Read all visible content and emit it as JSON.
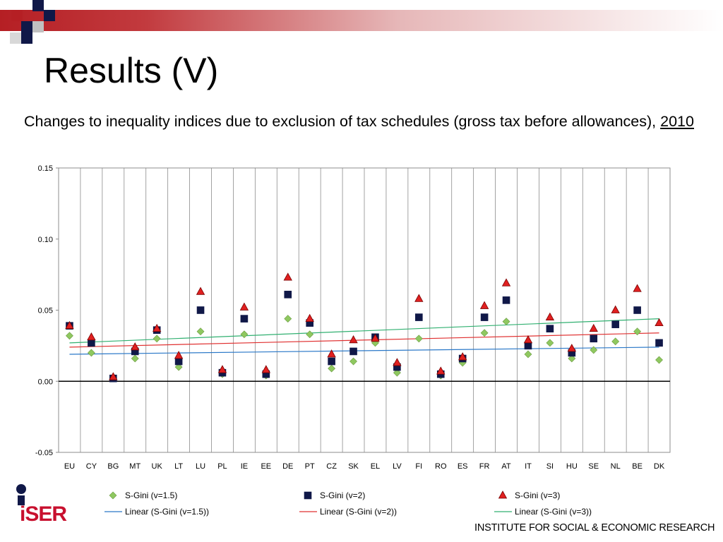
{
  "slide": {
    "title": "Results (V)",
    "subtitle_main": "Changes to inequality indices due to exclusion of tax schedules (gross tax before allowances), ",
    "subtitle_year": "2010",
    "footer_institute": "INSTITUTE FOR SOCIAL & ECONOMIC RESEARCH",
    "logo_text": "iSER",
    "colors": {
      "accent_red": "#b51f24",
      "navy": "#101848",
      "logo_red": "#c8102e"
    }
  },
  "chart_data": {
    "type": "scatter",
    "title": "",
    "xlabel": "",
    "ylabel": "",
    "ylim": [
      -0.05,
      0.15
    ],
    "yticks": [
      "0.15",
      "0.10",
      "0.05",
      "0.00",
      "-0.05"
    ],
    "ytick_values": [
      0.15,
      0.1,
      0.05,
      0.0,
      -0.05
    ],
    "grid": "vertical",
    "legend_position": "bottom",
    "categories": [
      "EU",
      "CY",
      "BG",
      "MT",
      "UK",
      "LT",
      "LU",
      "PL",
      "IE",
      "EE",
      "DE",
      "PT",
      "CZ",
      "SK",
      "EL",
      "LV",
      "FI",
      "RO",
      "ES",
      "FR",
      "AT",
      "IT",
      "SI",
      "HU",
      "SE",
      "NL",
      "BE",
      "DK"
    ],
    "series": [
      {
        "name": "S-Gini (v=1.5)",
        "marker": "diamond",
        "color": "#8fc860",
        "stroke": "#6a9a40",
        "values": [
          0.032,
          0.02,
          0.002,
          0.016,
          0.03,
          0.01,
          0.035,
          0.005,
          0.033,
          0.004,
          0.044,
          0.033,
          0.009,
          0.014,
          0.027,
          0.006,
          0.03,
          0.004,
          0.013,
          0.034,
          0.042,
          0.019,
          0.027,
          0.016,
          0.022,
          0.028,
          0.035,
          0.015
        ]
      },
      {
        "name": "S-Gini (v=2)",
        "marker": "square",
        "color": "#101848",
        "stroke": "#101848",
        "values": [
          0.039,
          0.027,
          0.002,
          0.021,
          0.036,
          0.014,
          0.05,
          0.006,
          0.044,
          0.005,
          0.061,
          0.041,
          0.014,
          0.021,
          0.031,
          0.01,
          0.045,
          0.005,
          0.016,
          0.045,
          0.057,
          0.025,
          0.037,
          0.02,
          0.03,
          0.04,
          0.05,
          0.027
        ]
      },
      {
        "name": "S-Gini (v=3)",
        "marker": "triangle",
        "color": "#e02020",
        "stroke": "#7a0000",
        "values": [
          0.039,
          0.031,
          0.003,
          0.024,
          0.037,
          0.018,
          0.063,
          0.008,
          0.052,
          0.008,
          0.073,
          0.044,
          0.019,
          0.029,
          0.03,
          0.013,
          0.058,
          0.007,
          0.017,
          0.053,
          0.069,
          0.029,
          0.045,
          0.023,
          0.037,
          0.05,
          0.065,
          0.041
        ]
      }
    ],
    "trendlines": [
      {
        "name": "Linear (S-Gini (v=1.5))",
        "color": "#2a78c8",
        "start": 0.019,
        "end": 0.024
      },
      {
        "name": "Linear (S-Gini (v=2))",
        "color": "#e03030",
        "start": 0.024,
        "end": 0.034
      },
      {
        "name": "Linear (S-Gini (v=3))",
        "color": "#30b070",
        "start": 0.027,
        "end": 0.044
      }
    ]
  }
}
